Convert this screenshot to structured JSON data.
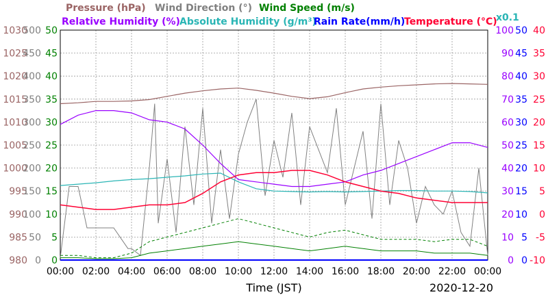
{
  "chart_data": {
    "type": "line",
    "date": "2020-12-20",
    "xlabel": "Time (JST)",
    "x_ticks": [
      "00:00",
      "02:00",
      "04:00",
      "06:00",
      "08:00",
      "10:00",
      "12:00",
      "14:00",
      "16:00",
      "18:00",
      "20:00",
      "22:00",
      "00:00"
    ],
    "x_range_hours": [
      0,
      24
    ],
    "grid": true,
    "scale_note": "x0.1",
    "colors": {
      "pressure": "#9a6464",
      "wind_direction": "#808080",
      "wind_speed": "#008000",
      "humidity": "#9900ff",
      "abs_humidity": "#2ab5b5",
      "rain": "#0000ff",
      "temperature": "#ff0033"
    },
    "axes": {
      "pressure": {
        "label": "Pressure (hPa)",
        "range": [
          980,
          1030
        ],
        "ticks": [
          "980",
          "985",
          "990",
          "995",
          "1000",
          "1005",
          "1010",
          "1015",
          "1020",
          "1025",
          "1030"
        ]
      },
      "wind_direction": {
        "label": "Wind Direction (°)",
        "range": [
          0,
          500
        ],
        "ticks": [
          "0",
          "50",
          "100",
          "150",
          "200",
          "250",
          "300",
          "350",
          "400",
          "450",
          "500"
        ]
      },
      "wind_speed": {
        "label": "Wind Speed (m/s)",
        "range": [
          0,
          50
        ],
        "ticks": [
          "0",
          "5",
          "10",
          "15",
          "20",
          "25",
          "30",
          "35",
          "40",
          "45",
          "50"
        ]
      },
      "humidity": {
        "label": "Relative Humidity (%)",
        "range": [
          0,
          100
        ],
        "ticks": [
          "0",
          "10",
          "20",
          "30",
          "40",
          "50",
          "60",
          "70",
          "80",
          "90",
          "100"
        ]
      },
      "abs_humidity": {
        "label": "Absolute Humidity (g/m³)"
      },
      "rain": {
        "label": "Rain Rate(mm/h)",
        "range": [
          0,
          50
        ],
        "ticks": [
          "0",
          "5",
          "10",
          "15",
          "20",
          "25",
          "30",
          "35",
          "40",
          "45",
          "50"
        ]
      },
      "temperature": {
        "label": "Temperature (°C)",
        "range": [
          -10,
          40
        ],
        "ticks": [
          "-10",
          "-5",
          "0",
          "5",
          "10",
          "15",
          "20",
          "25",
          "30",
          "35",
          "40"
        ]
      }
    },
    "series": {
      "pressure": {
        "x": [
          0,
          1,
          2,
          3,
          4,
          5,
          6,
          7,
          8,
          9,
          10,
          11,
          12,
          13,
          14,
          15,
          16,
          17,
          18,
          19,
          20,
          21,
          22,
          23,
          24
        ],
        "y": [
          1014.0,
          1014.2,
          1014.5,
          1014.5,
          1014.6,
          1014.9,
          1015.6,
          1016.3,
          1016.8,
          1017.2,
          1017.4,
          1016.9,
          1016.3,
          1015.6,
          1015.1,
          1015.5,
          1016.4,
          1017.2,
          1017.6,
          1017.9,
          1018.1,
          1018.3,
          1018.4,
          1018.3,
          1018.2
        ]
      },
      "humidity": {
        "x": [
          0,
          1,
          2,
          3,
          4,
          5,
          6,
          7,
          8,
          9,
          10,
          11,
          12,
          13,
          14,
          15,
          16,
          17,
          18,
          19,
          20,
          21,
          22,
          23,
          24
        ],
        "y": [
          59,
          63,
          65,
          65,
          64,
          61,
          60,
          57,
          50,
          42,
          35,
          34,
          33,
          32,
          32,
          33,
          34,
          37,
          39,
          42,
          45,
          48,
          51,
          51,
          49
        ]
      },
      "abs_humidity": {
        "x": [
          0,
          1,
          2,
          3,
          4,
          5,
          6,
          7,
          8,
          9,
          10,
          11,
          12,
          13,
          14,
          15,
          16,
          17,
          18,
          19,
          20,
          21,
          22,
          23,
          24
        ],
        "y": [
          16.2,
          16.5,
          16.8,
          17.2,
          17.5,
          17.7,
          18.0,
          18.3,
          18.7,
          18.9,
          17.0,
          15.5,
          15.0,
          14.9,
          14.8,
          14.9,
          14.8,
          14.9,
          15.0,
          15.1,
          15.1,
          15.0,
          15.0,
          14.9,
          14.6
        ]
      },
      "temperature": {
        "x": [
          0,
          1,
          2,
          3,
          4,
          5,
          6,
          7,
          8,
          9,
          10,
          11,
          12,
          13,
          14,
          15,
          16,
          17,
          18,
          19,
          20,
          21,
          22,
          23,
          24
        ],
        "y": [
          2.0,
          1.5,
          1.0,
          1.0,
          1.5,
          2.0,
          2.0,
          2.5,
          4.5,
          7.0,
          8.5,
          9.0,
          9.0,
          9.5,
          9.5,
          8.5,
          7.0,
          6.0,
          5.0,
          4.5,
          3.5,
          3.0,
          2.5,
          2.5,
          2.5
        ]
      },
      "wind_direction": {
        "x": [
          0,
          0.5,
          1,
          1.5,
          2,
          3,
          3.8,
          4,
          4.5,
          5,
          5.3,
          5.5,
          6,
          6.5,
          7,
          7.5,
          8,
          8.5,
          9,
          9.5,
          10,
          10.5,
          11,
          11.5,
          12,
          12.5,
          13,
          13.5,
          14,
          14.5,
          15,
          15.5,
          16,
          16.5,
          17,
          17.5,
          18,
          18.5,
          19,
          19.5,
          20,
          20.5,
          21,
          21.5,
          22,
          22.5,
          23,
          23.5,
          24
        ],
        "y": [
          5,
          160,
          160,
          70,
          70,
          70,
          25,
          25,
          10,
          200,
          340,
          80,
          220,
          60,
          290,
          120,
          330,
          80,
          240,
          90,
          230,
          300,
          350,
          140,
          260,
          180,
          320,
          120,
          290,
          240,
          190,
          330,
          120,
          200,
          280,
          90,
          340,
          120,
          260,
          200,
          80,
          160,
          120,
          100,
          150,
          60,
          30,
          200,
          10
        ]
      },
      "wind_speed_avg": {
        "x": [
          0,
          1,
          2,
          3,
          4,
          5,
          6,
          7,
          8,
          9,
          10,
          11,
          12,
          13,
          14,
          15,
          16,
          17,
          18,
          19,
          20,
          21,
          22,
          23,
          24
        ],
        "y": [
          0.5,
          0.5,
          0.3,
          0.3,
          0.5,
          1.5,
          2.0,
          2.5,
          3.0,
          3.5,
          4.0,
          3.5,
          3.0,
          2.5,
          2.0,
          2.5,
          3.0,
          2.5,
          2.0,
          2.0,
          2.0,
          1.5,
          1.5,
          1.5,
          1.0
        ]
      },
      "wind_speed_gust": {
        "x": [
          0,
          1,
          2,
          3,
          4,
          5,
          6,
          7,
          8,
          9,
          10,
          11,
          12,
          13,
          14,
          15,
          16,
          17,
          18,
          19,
          20,
          21,
          22,
          23,
          24
        ],
        "y": [
          1.0,
          1.0,
          0.5,
          0.5,
          1.5,
          4.0,
          5.0,
          6.0,
          7.0,
          8.0,
          9.0,
          8.0,
          7.0,
          6.0,
          5.0,
          6.0,
          6.5,
          5.5,
          4.5,
          4.5,
          4.5,
          4.0,
          4.5,
          4.5,
          3.0
        ]
      },
      "rain": {
        "x": [
          0,
          24
        ],
        "y": [
          0,
          0
        ]
      }
    }
  }
}
